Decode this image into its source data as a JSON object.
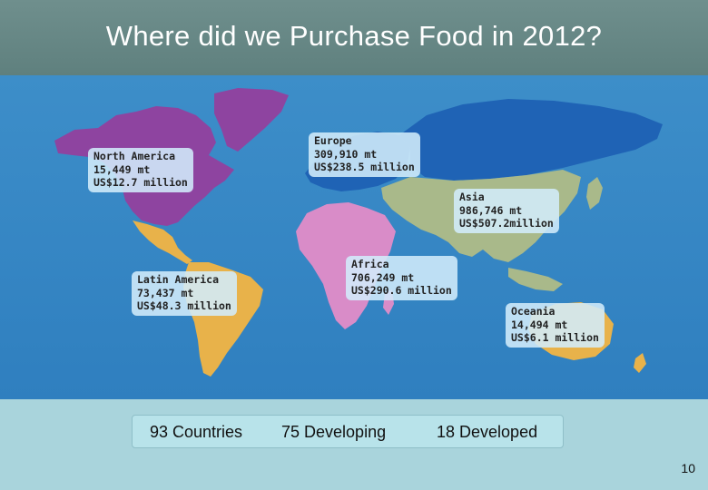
{
  "title": "Where did we Purchase Food in 2012?",
  "regions": {
    "north_america": {
      "name": "North America",
      "volume": "15,449 mt",
      "value": "US$12.7 million",
      "color": "#8e44a0"
    },
    "europe": {
      "name": "Europe",
      "volume": "309,910 mt",
      "value": "US$238.5 million",
      "color": "#1f63b5"
    },
    "asia": {
      "name": "Asia",
      "volume": "986,746 mt",
      "value": "US$507.2million",
      "color": "#a9b98a"
    },
    "latin_america": {
      "name": "Latin America",
      "volume": "73,437 mt",
      "value": "US$48.3 million",
      "color": "#e8b24a"
    },
    "africa": {
      "name": "Africa",
      "volume": "706,249 mt",
      "value": "US$290.6 million",
      "color": "#d98cc8"
    },
    "oceania": {
      "name": "Oceania",
      "volume": "14,494 mt",
      "value": "US$6.1 million",
      "color": "#e8b24a"
    }
  },
  "stats": {
    "countries": "93 Countries",
    "developing": "75 Developing",
    "developed": "18 Developed"
  },
  "page_number": "10",
  "colors": {
    "ocean": "#2f7fbf",
    "title_bar": "#6a8b89",
    "footer": "#a9d4dc"
  }
}
